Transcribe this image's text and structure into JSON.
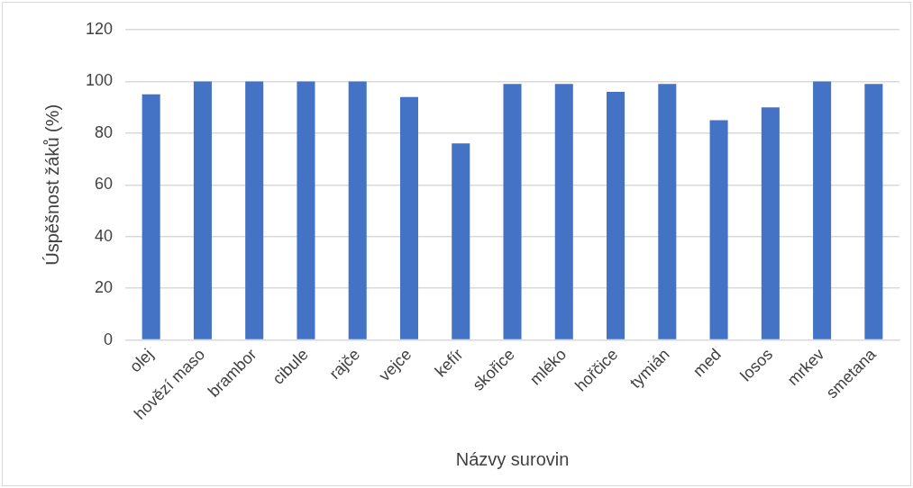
{
  "chart_data": {
    "type": "bar",
    "xlabel": "Názvy surovin",
    "ylabel": "Úspěšnost žáků (%)",
    "categories": [
      "olej",
      "hovězí maso",
      "brambor",
      "cibule",
      "rajče",
      "vejce",
      "kefír",
      "skořice",
      "mléko",
      "hořčice",
      "tymián",
      "med",
      "losos",
      "mrkev",
      "smetana"
    ],
    "values": [
      95,
      100,
      100,
      100,
      100,
      94,
      76,
      99,
      99,
      96,
      99,
      85,
      90,
      100,
      99
    ],
    "color": "#4472c4",
    "ylim": [
      0,
      120
    ],
    "yticks": [
      0,
      20,
      40,
      60,
      80,
      100,
      120
    ],
    "grid": "y",
    "legend": false
  }
}
